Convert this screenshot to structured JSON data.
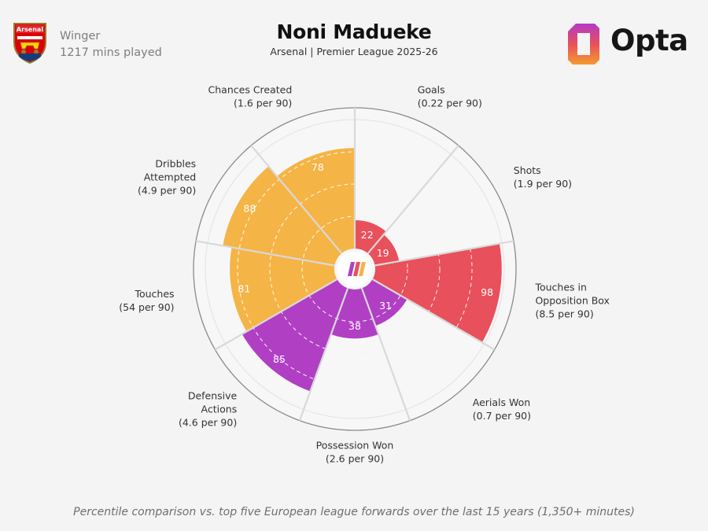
{
  "player": {
    "name": "Noni Madueke",
    "position": "Winger",
    "minutes": "1217 mins played",
    "context": "Arsenal | Premier League 2025-26"
  },
  "brand": {
    "wordmark": "Opta",
    "crest_text": "Arsenal"
  },
  "footnote": "Percentile comparison vs. top five European league forwards over the last 15 years (1,350+ minutes)",
  "colors": {
    "attack": "#e8505b",
    "possession": "#f5b446",
    "defence": "#b03fc4",
    "background": "#f4f4f4",
    "grid": "#d8d8d8"
  },
  "chart_data": {
    "type": "radar-bar",
    "title": "Noni Madueke",
    "subtitle": "Arsenal | Premier League 2025-26",
    "scale": [
      0,
      100
    ],
    "categories": [
      {
        "label": "Goals",
        "per90": "(0.22 per 90)",
        "value": 22,
        "group": "attack"
      },
      {
        "label": "Shots",
        "per90": "(1.9 per 90)",
        "value": 19,
        "group": "attack"
      },
      {
        "label": "Touches in Opposition Box",
        "per90": "(8.5 per 90)",
        "value": 98,
        "group": "attack"
      },
      {
        "label": "Aerials Won",
        "per90": "(0.7 per 90)",
        "value": 31,
        "group": "defence"
      },
      {
        "label": "Possession Won",
        "per90": "(2.6 per 90)",
        "value": 38,
        "group": "defence"
      },
      {
        "label": "Defensive Actions",
        "per90": "(4.6 per 90)",
        "value": 85,
        "group": "defence"
      },
      {
        "label": "Touches",
        "per90": "(54 per 90)",
        "value": 81,
        "group": "possession"
      },
      {
        "label": "Dribbles Attempted",
        "per90": "(4.9 per 90)",
        "value": 88,
        "group": "possession"
      },
      {
        "label": "Chances Created",
        "per90": "(1.6 per 90)",
        "value": 78,
        "group": "possession"
      }
    ]
  }
}
